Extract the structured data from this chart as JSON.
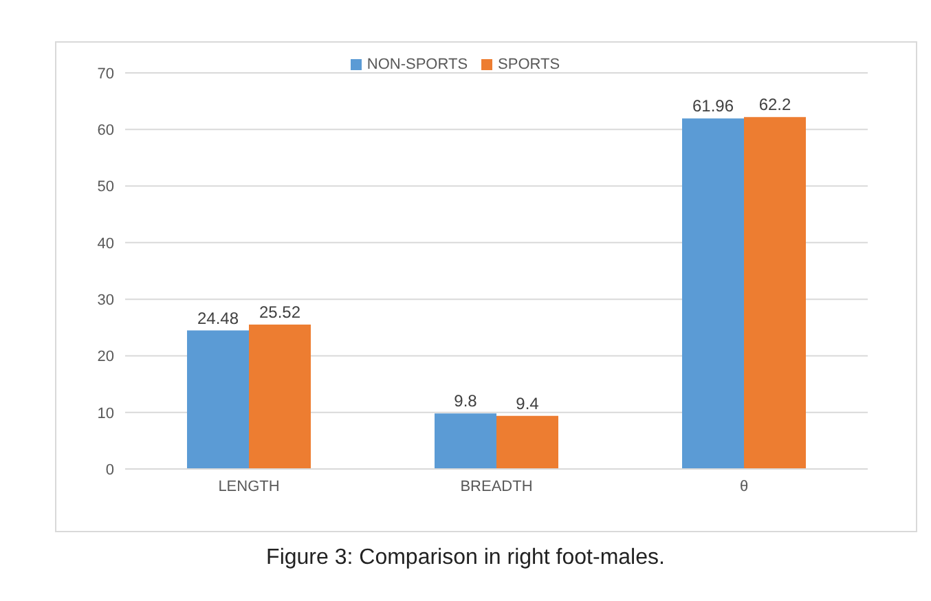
{
  "chart_data": {
    "type": "bar",
    "categories": [
      "LENGTH",
      "BREADTH",
      "θ"
    ],
    "series": [
      {
        "name": "NON-SPORTS",
        "color": "#5b9bd5",
        "values": [
          24.48,
          9.8,
          61.96
        ]
      },
      {
        "name": "SPORTS",
        "color": "#ed7d31",
        "values": [
          25.52,
          9.4,
          62.2
        ]
      }
    ],
    "ylim": [
      0,
      70
    ],
    "yticks": [
      0,
      10,
      20,
      30,
      40,
      50,
      60,
      70
    ],
    "grid": "y",
    "legend": "top",
    "data_labels": true,
    "annotations": [
      "Figure 3: Comparison in right foot-males."
    ]
  }
}
